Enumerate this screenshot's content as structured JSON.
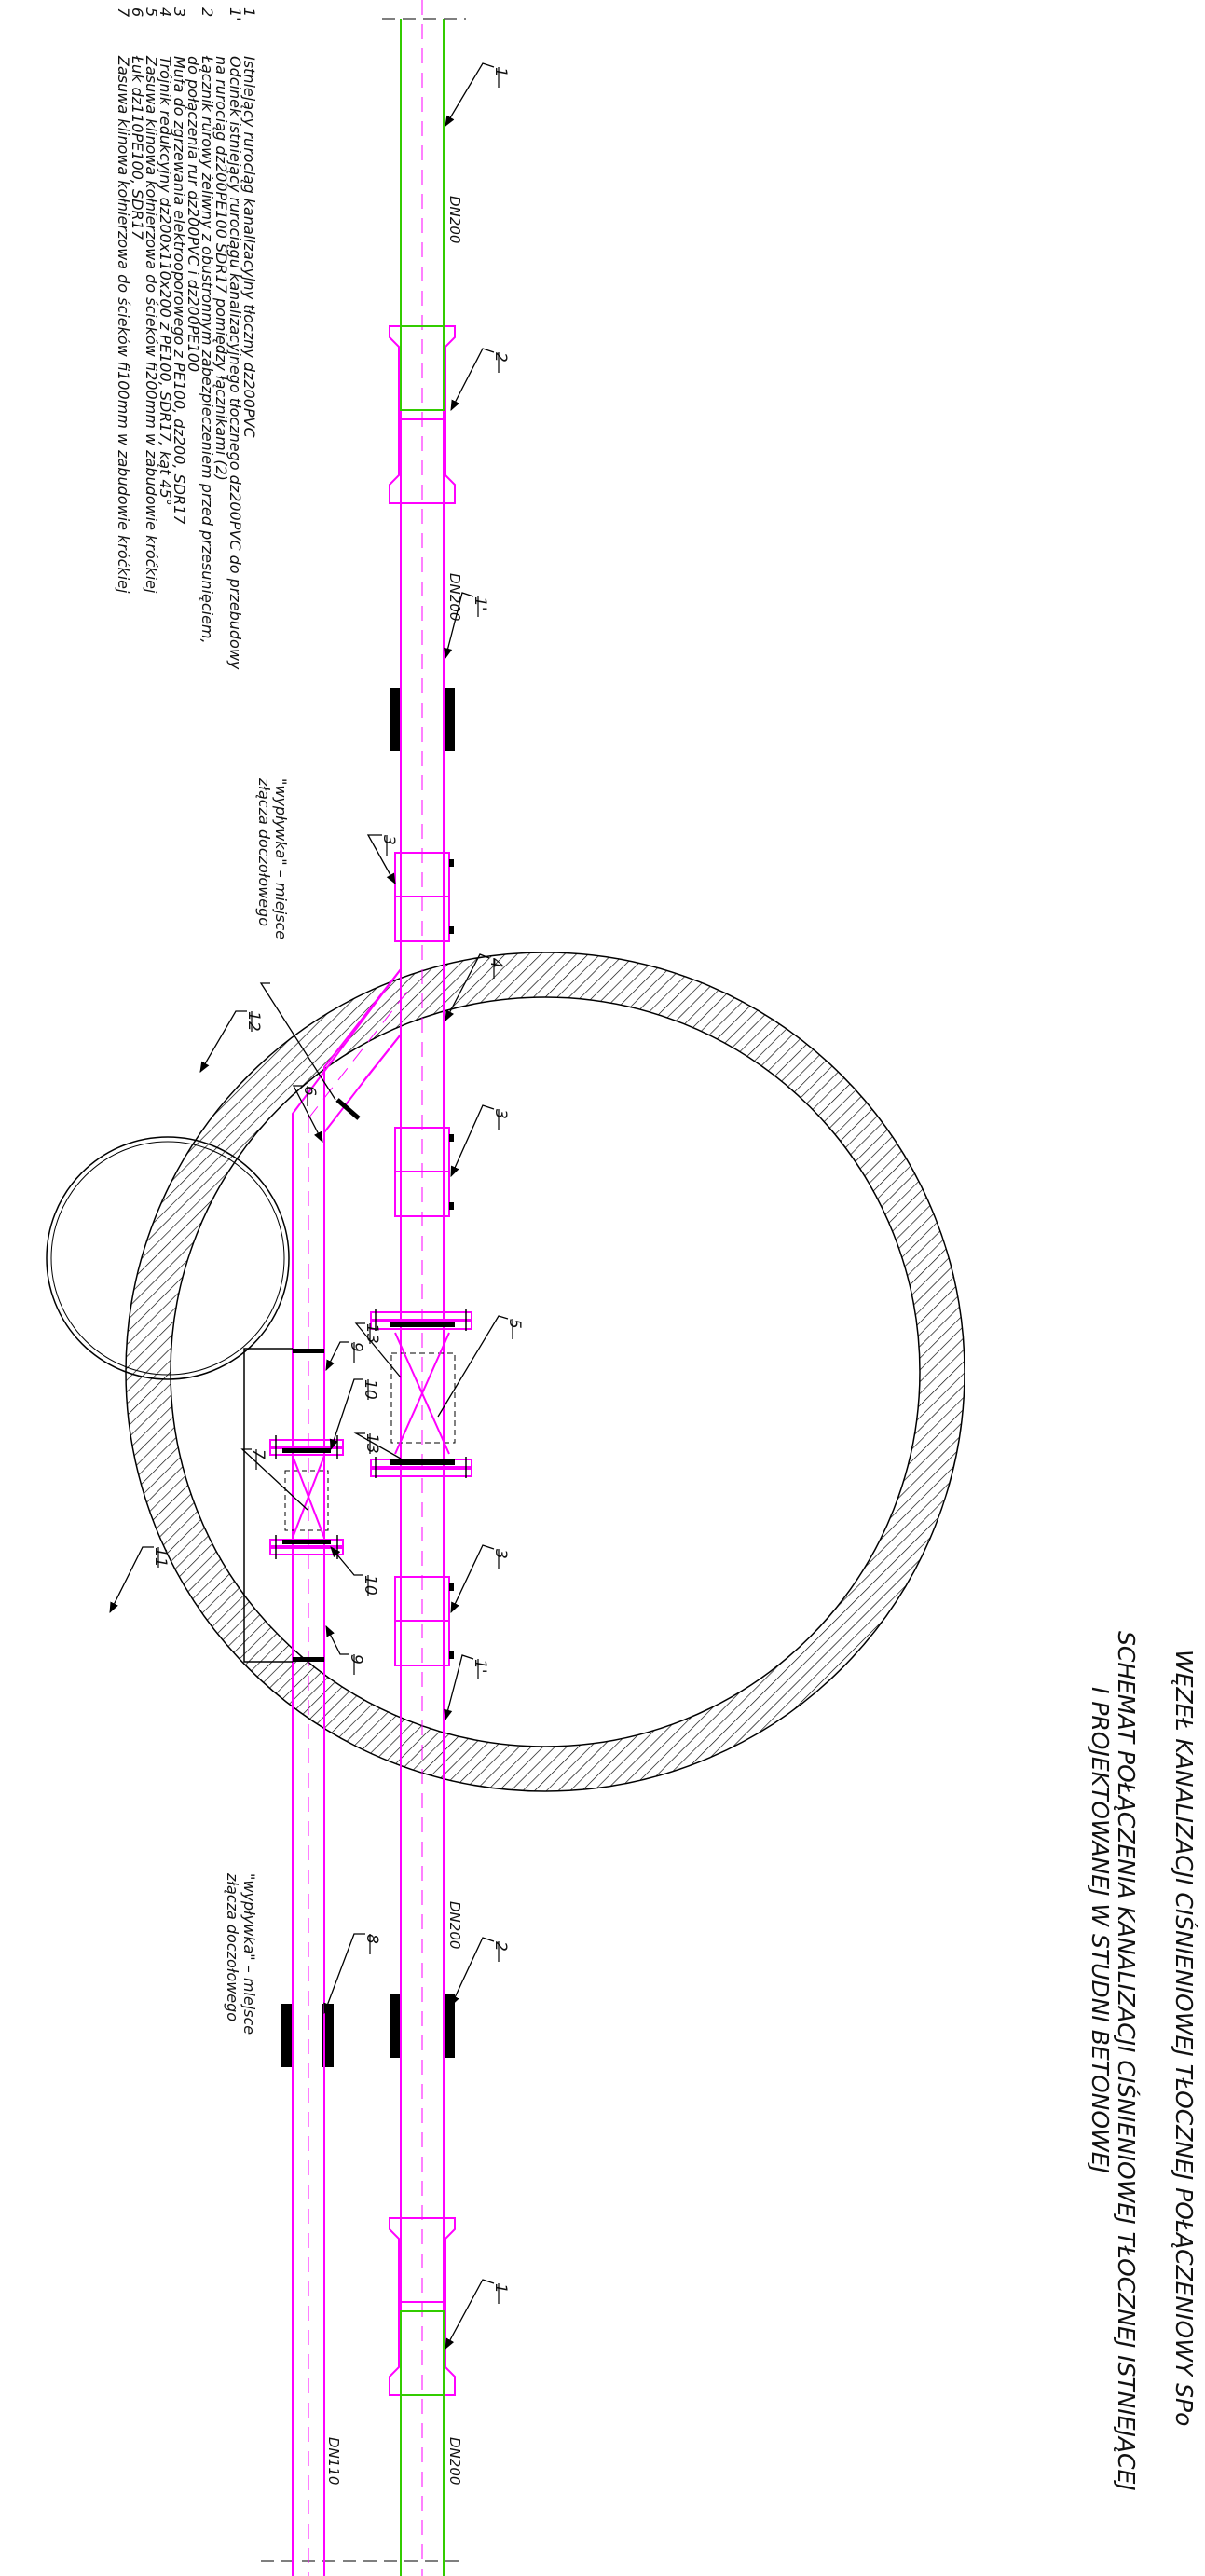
{
  "title": {
    "line1": "WĘZEŁ KANALIZACJI CIŚNIENIOWEJ TŁOCZNEJ POŁĄCZENIOWY SPo",
    "line2": "SCHEMAT POŁĄCZENIA KANALIZACJI CIŚNIENIOWEJ TŁOCZNEJ ISTNIEJĄCEJ",
    "line3": "I PROJEKTOWANEJ W STUDNI BETONOWEJ"
  },
  "legend": [
    {
      "num": "1",
      "text": "Istniejący rurociąg kanalizacyjny tłoczny dz200PVC"
    },
    {
      "num": "1'",
      "text": "Odcinek istniejący rurociągu kanalizacyjnego tłocznego dz200PVC do przebudowy"
    },
    {
      "num": "",
      "text": "na rurociąg dz200PE100 SDR17 pomiędzy łącznikami (2)"
    },
    {
      "num": "2",
      "text": "Łącznik rurowy żeliwny z obustronnym zabezpieczeniem przed przesunięciem,"
    },
    {
      "num": "",
      "text": "do połączenia rur dz200PVC i dz200PE100"
    },
    {
      "num": "3",
      "text": "Mufa do zgrzewania elektrooporowego z PE100, dz200, SDR17"
    },
    {
      "num": "4",
      "text": "Trójnik redukcyjny dz200x110x200 z PE100, SDR17, kąt 45°"
    },
    {
      "num": "5",
      "text": "Zasuwa klinowa kołnierzowa do ścieków fi200mm w zabudowie króćkiej"
    },
    {
      "num": "6",
      "text": "Łuk dz110PE100, SDR17"
    },
    {
      "num": "7",
      "text": "Zasuwa klinowa kołnierzowa do ścieków fi100mm w zabudowie króćkiej"
    }
  ],
  "pipe_labels": {
    "dn200_a": "DN200",
    "dn200_b": "DN200",
    "dn200_c": "DN200",
    "dn200_d": "DN200",
    "dn110": "DN110"
  },
  "annotations": {
    "weld1_a": "\"wypływka\" – miejsce",
    "weld1_b": "złącza doczołowego",
    "weld2_a": "\"wypływka\" – miejsce",
    "weld2_b": "złącza doczołowego"
  },
  "markers": {
    "m1_top": "1",
    "m2_top": "2",
    "m1p_top": "1'",
    "m3_a": "3",
    "m4": "4",
    "m3_b": "3",
    "m5": "5",
    "m13_a": "13",
    "m13_b": "13",
    "m12": "12",
    "m6": "6",
    "m9_a": "9",
    "m10_a": "10",
    "m7": "7",
    "m10_b": "10",
    "m9_b": "9",
    "m11": "11",
    "m3_c": "3",
    "m1p_bot": "1'",
    "m2_bot": "2",
    "m8": "8",
    "m1_bot": "1"
  },
  "colors": {
    "pipe_new": "#ff00ff",
    "pipe_existing": "#33cc00",
    "wall_hatch": "#000000"
  }
}
